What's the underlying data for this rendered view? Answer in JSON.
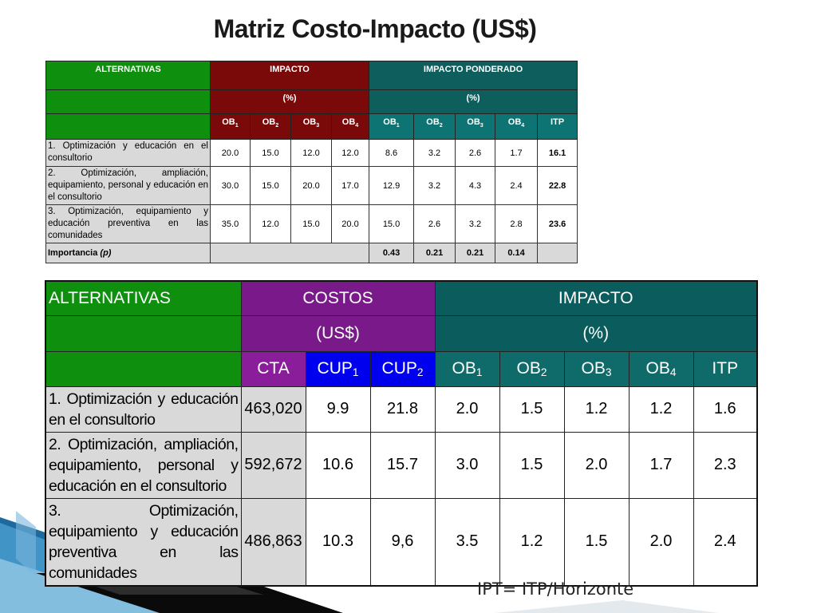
{
  "title": "Matriz Costo-Impacto (US$)",
  "table1": {
    "header1": {
      "alternativas": "ALTERNATIVAS",
      "impacto": "IMPACTO",
      "impacto_ponderado": "IMPACTO PONDERADO"
    },
    "header2": {
      "impacto_unit": "(%)",
      "ponderado_unit": "(%)"
    },
    "ob": [
      "OB",
      "OB",
      "OB",
      "OB"
    ],
    "ob_sub": [
      "1",
      "2",
      "3",
      "4"
    ],
    "itp": "ITP",
    "rows": [
      {
        "alt": "1. Optimización y educación en el consultorio",
        "vals": [
          "20.0",
          "15.0",
          "12.0",
          "12.0",
          "8.6",
          "3.2",
          "2.6",
          "1.7",
          "16.1"
        ]
      },
      {
        "alt": "2. Optimización, ampliación, equipamiento, personal y educación en el consultorio",
        "vals": [
          "30.0",
          "15.0",
          "20.0",
          "17.0",
          "12.9",
          "3.2",
          "4.3",
          "2.4",
          "22.8"
        ]
      },
      {
        "alt": "3. Optimización, equipamiento y educación preventiva en las comunidades",
        "vals": [
          "35.0",
          "12.0",
          "15.0",
          "20.0",
          "15.0",
          "2.6",
          "3.2",
          "2.8",
          "23.6"
        ]
      }
    ],
    "importancia_label": "Importancia",
    "importancia_p": "(p)",
    "importancia": [
      "0.43",
      "0.21",
      "0.21",
      "0.14"
    ]
  },
  "table2": {
    "header1": {
      "alternativas": "ALTERNATIVAS",
      "costos": "COSTOS",
      "impacto": "IMPACTO"
    },
    "header2": {
      "costos_unit": "(US$)",
      "impacto_unit": "(%)"
    },
    "cta": "CTA",
    "cup": [
      "CUP",
      "CUP"
    ],
    "cup_sub": [
      "1",
      "2"
    ],
    "ob": [
      "OB",
      "OB",
      "OB",
      "OB"
    ],
    "ob_sub": [
      "1",
      "2",
      "3",
      "4"
    ],
    "itp": "ITP",
    "rows": [
      {
        "alt": "1. Optimización y educación en el consultorio",
        "vals": [
          "463,020",
          "9.9",
          "21.8",
          "2.0",
          "1.5",
          "1.2",
          "1.2",
          "1.6"
        ]
      },
      {
        "alt": "2. Optimización, ampliación, equipamiento, personal y educación en el consultorio",
        "vals": [
          "592,672",
          "10.6",
          "15.7",
          "3.0",
          "1.5",
          "2.0",
          "1.7",
          "2.3"
        ]
      },
      {
        "alt": "3. Optimización, equipamiento y educación preventiva en las comunidades",
        "vals": [
          "486,863",
          "10.3",
          "9,6",
          "3.5",
          "1.2",
          "1.5",
          "2.0",
          "2.4"
        ]
      }
    ]
  },
  "note": "IPT= ITP/Horizonte"
}
